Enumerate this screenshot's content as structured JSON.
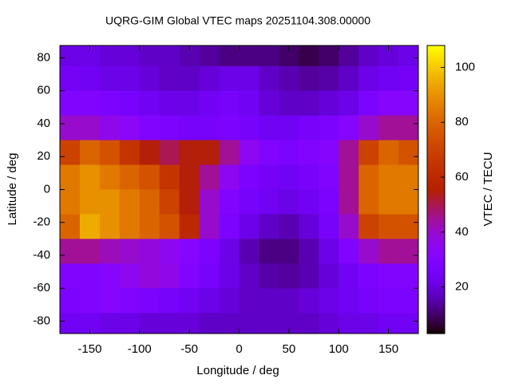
{
  "chart_data": {
    "type": "heatmap",
    "title": "UQRG-GIM Global VTEC maps 20251104.308.00000",
    "xlabel": "Longitude / deg",
    "ylabel": "Latitude / deg",
    "colorbar_label": "VTEC / TECU",
    "x": [
      -170,
      -150,
      -130,
      -110,
      -90,
      -70,
      -50,
      -30,
      -10,
      10,
      30,
      50,
      70,
      90,
      110,
      130,
      150,
      170
    ],
    "y": [
      82.5,
      67.5,
      52.5,
      37.5,
      22.5,
      7.5,
      -7.5,
      -22.5,
      -37.5,
      -52.5,
      -67.5,
      -82.5
    ],
    "z": [
      [
        22,
        22,
        20,
        20,
        18,
        18,
        16,
        14,
        12,
        12,
        12,
        10,
        8,
        10,
        14,
        18,
        20,
        22
      ],
      [
        25,
        24,
        22,
        22,
        20,
        18,
        18,
        20,
        22,
        22,
        18,
        16,
        14,
        15,
        18,
        22,
        24,
        25
      ],
      [
        30,
        30,
        28,
        26,
        24,
        22,
        22,
        24,
        26,
        24,
        20,
        18,
        18,
        20,
        22,
        28,
        32,
        32
      ],
      [
        40,
        40,
        36,
        34,
        30,
        28,
        26,
        26,
        28,
        26,
        24,
        24,
        26,
        28,
        32,
        40,
        45,
        45
      ],
      [
        70,
        80,
        75,
        65,
        55,
        50,
        55,
        55,
        45,
        35,
        30,
        28,
        30,
        32,
        45,
        70,
        80,
        75
      ],
      [
        85,
        90,
        85,
        80,
        75,
        65,
        55,
        45,
        35,
        28,
        25,
        24,
        26,
        30,
        45,
        80,
        85,
        85
      ],
      [
        85,
        90,
        90,
        85,
        80,
        70,
        55,
        40,
        30,
        26,
        24,
        22,
        24,
        28,
        45,
        80,
        85,
        85
      ],
      [
        80,
        95,
        90,
        85,
        80,
        75,
        60,
        40,
        28,
        22,
        18,
        16,
        20,
        26,
        40,
        70,
        75,
        75
      ],
      [
        45,
        45,
        42,
        40,
        38,
        35,
        32,
        28,
        22,
        16,
        12,
        12,
        16,
        22,
        30,
        40,
        45,
        45
      ],
      [
        30,
        30,
        32,
        35,
        38,
        36,
        30,
        26,
        22,
        18,
        15,
        14,
        16,
        20,
        24,
        28,
        30,
        30
      ],
      [
        28,
        30,
        32,
        30,
        28,
        26,
        24,
        22,
        20,
        18,
        18,
        18,
        20,
        22,
        24,
        26,
        28,
        28
      ],
      [
        24,
        24,
        22,
        22,
        20,
        20,
        20,
        18,
        18,
        18,
        18,
        18,
        18,
        20,
        22,
        22,
        24,
        24
      ]
    ],
    "xlim": [
      -180,
      180
    ],
    "ylim": [
      -87.5,
      87.5
    ],
    "zlim": [
      3,
      108
    ],
    "xticks": [
      -150,
      -100,
      -50,
      0,
      50,
      100,
      150
    ],
    "yticks": [
      -80,
      -60,
      -40,
      -20,
      0,
      20,
      40,
      60,
      80
    ],
    "cbticks": [
      20,
      40,
      60,
      80,
      100
    ],
    "palette": "gnuplot"
  }
}
